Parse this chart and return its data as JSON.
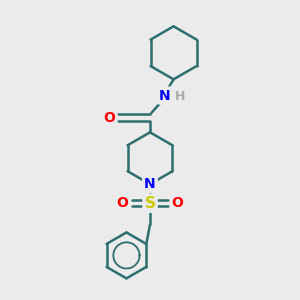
{
  "background_color": "#ebebeb",
  "bond_color": "#2d6e6e",
  "atom_colors": {
    "N": "#0000ff",
    "O": "#ff0000",
    "S": "#cccc00",
    "H": "#aaaaaa",
    "C": "#2d6e6e"
  },
  "figsize": [
    3.0,
    3.0
  ],
  "dpi": 100
}
